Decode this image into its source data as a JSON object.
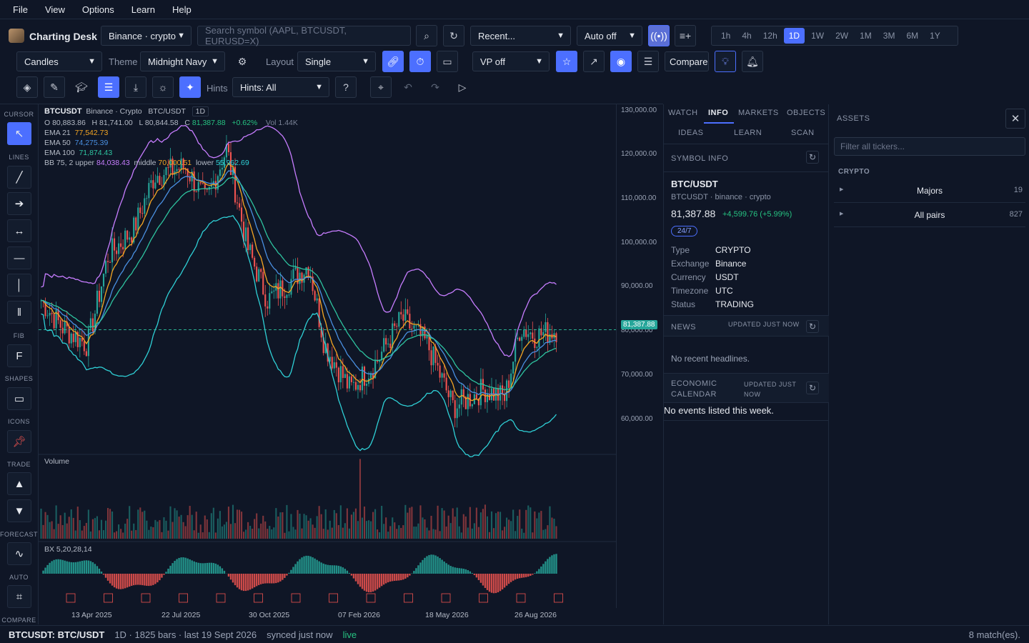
{
  "menu": [
    "File",
    "View",
    "Options",
    "Learn",
    "Help"
  ],
  "app": {
    "title": "Charting Desk"
  },
  "toolbar1": {
    "exchange": "Binance · crypto",
    "search_placeholder": "Search symbol (AAPL, BTCUSDT, EURUSD=X)",
    "recent": "Recent...",
    "auto": "Auto off",
    "timeframes": [
      "1h",
      "4h",
      "12h",
      "1D",
      "1W",
      "2W",
      "1M",
      "3M",
      "6M",
      "1Y"
    ],
    "active_timeframe": "1D"
  },
  "toolbar2": {
    "chart_type": "Candles",
    "theme_label": "Theme",
    "theme": "Midnight Navy",
    "layout_label": "Layout",
    "layout": "Single",
    "vp": "VP off",
    "compare": "Compare"
  },
  "toolbar3": {
    "hints_label": "Hints",
    "hints": "Hints: All"
  },
  "sidebar": {
    "sections": [
      "CURSOR",
      "LINES",
      "FIB",
      "SHAPES",
      "ICONS",
      "TRADE",
      "FORECAST",
      "AUTO",
      "COMPARE"
    ],
    "fib_glyph": "F"
  },
  "legend": {
    "symbol": "BTCUSDT",
    "exchange": "Binance · Crypto",
    "pair": "BTC/USDT",
    "tf": "1D",
    "ohlc": "O 80,883.86   H 81,741.00   L 80,844.58   C",
    "close": "81,387.88",
    "change": "+0.62%",
    "vol": "Vol 1.44K",
    "ema21_label": "EMA 21",
    "ema21": "77,542.73",
    "ema50_label": "EMA 50",
    "ema50": "74,275.39",
    "ema100_label": "EMA 100",
    "ema100": "71,874.43",
    "bb_label": "BB 75, 2  upper",
    "bb_upper": "84,038.43",
    "bb_mid_label": "middle",
    "bb_middle": "70,000.51",
    "bb_lower_label": "lower",
    "bb_lower": "55,962.69"
  },
  "price_axis": [
    "130,000.00",
    "120,000.00",
    "110,000.00",
    "100,000.00",
    "90,000.00",
    "80,000.00",
    "70,000.00",
    "60,000.00"
  ],
  "last_price": "81,387.88",
  "volume_label": "Volume",
  "osc_label": "BX 5,20,28,14",
  "date_axis": [
    "13 Apr 2025",
    "22 Jul 2025",
    "30 Oct 2025",
    "07 Feb 2026",
    "18 May 2026",
    "26 Aug 2026"
  ],
  "right_panel": {
    "tabs": [
      "WATCH",
      "INFO",
      "MARKETS",
      "OBJECTS"
    ],
    "subtabs": [
      "IDEAS",
      "LEARN",
      "SCAN"
    ],
    "active": "INFO",
    "symbol_info": "SYMBOL INFO",
    "name": "BTC/USDT",
    "sub": "BTCUSDT · binance · crypto",
    "price": "81,387.88",
    "change": "+4,599.76 (+5.99%)",
    "badge": "24/7",
    "fields": [
      {
        "k": "Type",
        "v": "CRYPTO"
      },
      {
        "k": "Exchange",
        "v": "Binance"
      },
      {
        "k": "Currency",
        "v": "USDT"
      },
      {
        "k": "Timezone",
        "v": "UTC"
      },
      {
        "k": "Status",
        "v": "TRADING"
      }
    ],
    "news": "NEWS",
    "news_updated": "UPDATED JUST NOW",
    "news_empty": "No recent headlines.",
    "econ": "ECONOMIC CALENDAR",
    "econ_updated": "UPDATED JUST NOW",
    "econ_empty": "No events listed this week."
  },
  "assets": {
    "title": "ASSETS",
    "filter_placeholder": "Filter all tickers...",
    "group": "CRYPTO",
    "rows": [
      {
        "name": "Majors",
        "count": "19"
      },
      {
        "name": "All pairs",
        "count": "827"
      }
    ]
  },
  "status": {
    "symbol": "BTCUSDT: BTC/USDT",
    "info": "1D · 1825 bars · last 19 Sept 2026",
    "synced": "synced just now",
    "live": "live",
    "matches": "8 match(es)."
  },
  "colors": {
    "bg": "#0f1626",
    "accent": "#4c6fff",
    "up": "#26a69a",
    "down": "#ef5350",
    "ema21": "#f5a623",
    "ema50": "#4a90e2",
    "ema100": "#2ec4a0",
    "bb": "#c77dff",
    "bb_lower": "#2fd0d6"
  }
}
